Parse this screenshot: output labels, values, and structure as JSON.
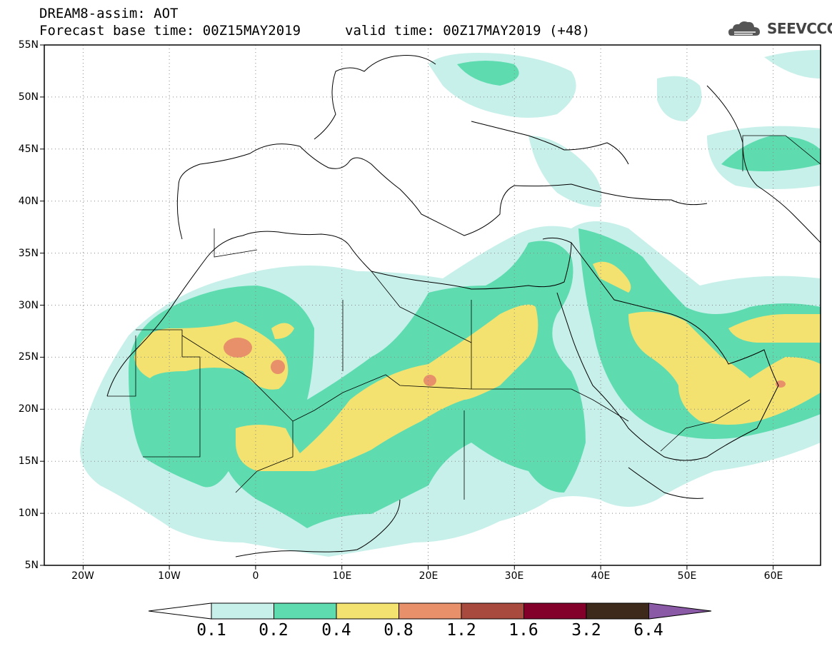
{
  "header": {
    "title_line1": "DREAM8-assim: AOT",
    "title_line2": "Forecast base time: 00Z15MAY2019",
    "valid_time": "valid time: 00Z17MAY2019 (+48)",
    "logo_text": "SEEVCCC",
    "logo_icon": "cloud-icon"
  },
  "axes": {
    "lat_ticks": [
      "55N",
      "50N",
      "45N",
      "40N",
      "35N",
      "30N",
      "25N",
      "20N",
      "15N",
      "10N",
      "5N"
    ],
    "lon_ticks": [
      "20W",
      "10W",
      "0",
      "10E",
      "20E",
      "30E",
      "40E",
      "50E",
      "60E"
    ],
    "lat_range": [
      5,
      55
    ],
    "lon_range": [
      -25,
      65
    ],
    "grid": "dotted"
  },
  "colorbar": {
    "labels": [
      "0.1",
      "0.2",
      "0.4",
      "0.8",
      "1.2",
      "1.6",
      "3.2",
      "6.4"
    ],
    "colors": [
      "#ffffff",
      "#c8f0ea",
      "#5edcb0",
      "#f4e270",
      "#e8906a",
      "#a94a3e",
      "#82002a",
      "#3e2a1a",
      "#8a5aa6"
    ]
  },
  "colors": {
    "c01": "#c8f0ea",
    "c02": "#5edcb0",
    "c04": "#f4e270",
    "c08": "#e8906a",
    "c12": "#a94a3e"
  }
}
